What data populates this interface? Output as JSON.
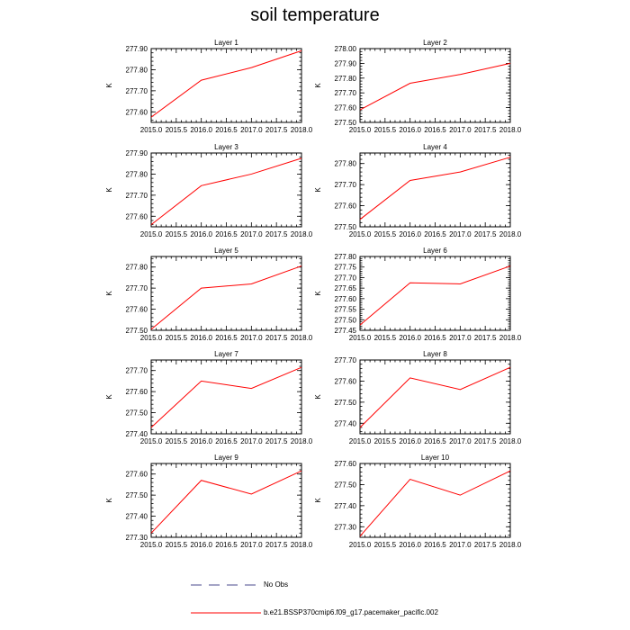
{
  "title": "soil temperature",
  "colors": {
    "model_line": "#ff0000",
    "obs_line": "#4a4a8c",
    "axis": "#000000"
  },
  "legend": {
    "obs_label": "No Obs",
    "model_label": "b.e21.BSSP370cmip6.f09_g17.pacemaker_pacific.002"
  },
  "chart_data": [
    {
      "type": "line",
      "title": "Layer 1",
      "ylabel": "K",
      "x": [
        2015,
        2016,
        2017,
        2018
      ],
      "values": [
        277.575,
        277.75,
        277.81,
        277.89
      ],
      "xlim": [
        2015,
        2018
      ],
      "ylim": [
        277.55,
        277.9
      ],
      "yticks": [
        277.6,
        277.7,
        277.8,
        277.9
      ],
      "ytick_labels": [
        "277.60",
        "277.70",
        "277.80",
        "277.90"
      ]
    },
    {
      "type": "line",
      "title": "Layer 2",
      "ylabel": "K",
      "x": [
        2015,
        2016,
        2017,
        2018
      ],
      "values": [
        277.585,
        277.765,
        277.825,
        277.9
      ],
      "xlim": [
        2015,
        2018
      ],
      "ylim": [
        277.5,
        278.0
      ],
      "yticks": [
        277.5,
        277.6,
        277.7,
        277.8,
        277.9,
        278.0
      ],
      "ytick_labels": [
        "277.50",
        "277.60",
        "277.70",
        "277.80",
        "277.90",
        "278.00"
      ]
    },
    {
      "type": "line",
      "title": "Layer 3",
      "ylabel": "K",
      "x": [
        2015,
        2016,
        2017,
        2018
      ],
      "values": [
        277.56,
        277.745,
        277.8,
        277.875
      ],
      "xlim": [
        2015,
        2018
      ],
      "ylim": [
        277.55,
        277.9
      ],
      "yticks": [
        277.6,
        277.7,
        277.8,
        277.9
      ],
      "ytick_labels": [
        "277.60",
        "277.70",
        "277.80",
        "277.90"
      ]
    },
    {
      "type": "line",
      "title": "Layer 4",
      "ylabel": "K",
      "x": [
        2015,
        2016,
        2017,
        2018
      ],
      "values": [
        277.535,
        277.72,
        277.76,
        277.83
      ],
      "xlim": [
        2015,
        2018
      ],
      "ylim": [
        277.5,
        277.85
      ],
      "yticks": [
        277.5,
        277.6,
        277.7,
        277.8
      ],
      "ytick_labels": [
        "277.50",
        "277.60",
        "277.70",
        "277.80"
      ]
    },
    {
      "type": "line",
      "title": "Layer 5",
      "ylabel": "K",
      "x": [
        2015,
        2016,
        2017,
        2018
      ],
      "values": [
        277.505,
        277.7,
        277.72,
        277.805
      ],
      "xlim": [
        2015,
        2018
      ],
      "ylim": [
        277.5,
        277.85
      ],
      "yticks": [
        277.5,
        277.6,
        277.7,
        277.8
      ],
      "ytick_labels": [
        "277.50",
        "277.60",
        "277.70",
        "277.80"
      ]
    },
    {
      "type": "line",
      "title": "Layer 6",
      "ylabel": "K",
      "x": [
        2015,
        2016,
        2017,
        2018
      ],
      "values": [
        277.475,
        277.675,
        277.67,
        277.755
      ],
      "xlim": [
        2015,
        2018
      ],
      "ylim": [
        277.45,
        277.8
      ],
      "yticks": [
        277.45,
        277.5,
        277.55,
        277.6,
        277.65,
        277.7,
        277.75,
        277.8
      ],
      "ytick_labels": [
        "277.45",
        "277.50",
        "277.55",
        "277.60",
        "277.65",
        "277.70",
        "277.75",
        "277.80"
      ]
    },
    {
      "type": "line",
      "title": "Layer 7",
      "ylabel": "K",
      "x": [
        2015,
        2016,
        2017,
        2018
      ],
      "values": [
        277.43,
        277.65,
        277.615,
        277.715
      ],
      "xlim": [
        2015,
        2018
      ],
      "ylim": [
        277.4,
        277.75
      ],
      "yticks": [
        277.4,
        277.5,
        277.6,
        277.7
      ],
      "ytick_labels": [
        "277.40",
        "277.50",
        "277.60",
        "277.70"
      ]
    },
    {
      "type": "line",
      "title": "Layer 8",
      "ylabel": "K",
      "x": [
        2015,
        2016,
        2017,
        2018
      ],
      "values": [
        277.38,
        277.615,
        277.56,
        277.665
      ],
      "xlim": [
        2015,
        2018
      ],
      "ylim": [
        277.35,
        277.7
      ],
      "yticks": [
        277.4,
        277.5,
        277.6,
        277.7
      ],
      "ytick_labels": [
        "277.40",
        "277.50",
        "277.60",
        "277.70"
      ]
    },
    {
      "type": "line",
      "title": "Layer 9",
      "ylabel": "K",
      "x": [
        2015,
        2016,
        2017,
        2018
      ],
      "values": [
        277.32,
        277.57,
        277.505,
        277.615
      ],
      "xlim": [
        2015,
        2018
      ],
      "ylim": [
        277.3,
        277.65
      ],
      "yticks": [
        277.3,
        277.4,
        277.5,
        277.6
      ],
      "ytick_labels": [
        "277.30",
        "277.40",
        "277.50",
        "277.60"
      ]
    },
    {
      "type": "line",
      "title": "Layer 10",
      "ylabel": "K",
      "x": [
        2015,
        2016,
        2017,
        2018
      ],
      "values": [
        277.255,
        277.525,
        277.45,
        277.565
      ],
      "xlim": [
        2015,
        2018
      ],
      "ylim": [
        277.25,
        277.6
      ],
      "yticks": [
        277.3,
        277.4,
        277.5,
        277.6
      ],
      "ytick_labels": [
        "277.30",
        "277.40",
        "277.50",
        "277.60"
      ]
    }
  ],
  "xticks": [
    2015.0,
    2015.5,
    2016.0,
    2016.5,
    2017.0,
    2017.5,
    2018.0
  ],
  "xtick_labels": [
    "2015.0",
    "2015.5",
    "2016.0",
    "2016.5",
    "2017.0",
    "2017.5",
    "2018.0"
  ]
}
